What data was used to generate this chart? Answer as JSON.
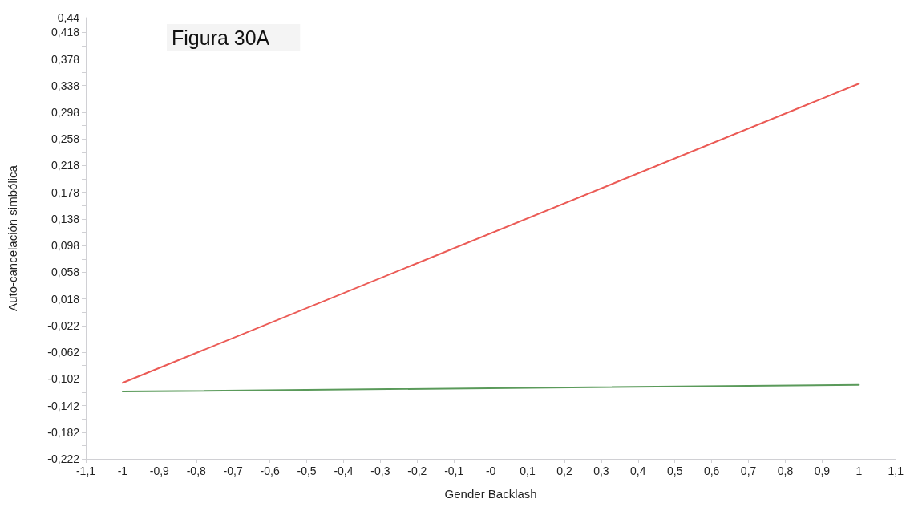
{
  "chart_data": {
    "type": "line",
    "title": "Figura 30A",
    "xlabel": "Gender Backlash",
    "ylabel": "Auto-cancelación simbólica",
    "x": [
      -1,
      1
    ],
    "series": [
      {
        "color": "#eb5a55",
        "values": [
          -0.108,
          0.341
        ]
      },
      {
        "color": "#5a9a5a",
        "values": [
          -0.121,
          -0.111
        ]
      }
    ],
    "xlim": [
      -1.1,
      1.1
    ],
    "xticks": [
      {
        "value": -1.1,
        "label": "-1,1"
      },
      -1,
      {
        "value": -0.9,
        "label": "-0,9"
      },
      {
        "value": -0.8,
        "label": "-0,8"
      },
      {
        "value": -0.7,
        "label": "-0,7"
      },
      {
        "value": -0.6,
        "label": "-0,6"
      },
      {
        "value": -0.5,
        "label": "-0,5"
      },
      {
        "value": -0.4,
        "label": "-0,4"
      },
      {
        "value": -0.3,
        "label": "-0,3"
      },
      {
        "value": -0.2,
        "label": "-0,2"
      },
      {
        "value": -0.1,
        "label": "-0,1"
      },
      {
        "value": 0,
        "label": "-0"
      },
      {
        "value": 0.1,
        "label": "0,1"
      },
      {
        "value": 0.2,
        "label": "0,2"
      },
      {
        "value": 0.3,
        "label": "0,3"
      },
      {
        "value": 0.4,
        "label": "0,4"
      },
      {
        "value": 0.5,
        "label": "0,5"
      },
      {
        "value": 0.6,
        "label": "0,6"
      },
      {
        "value": 0.7,
        "label": "0,7"
      },
      {
        "value": 0.8,
        "label": "0,8"
      },
      {
        "value": 0.9,
        "label": "0,9"
      },
      1,
      {
        "value": 1.1,
        "label": "1,1"
      }
    ],
    "ylim": [
      -0.222,
      0.44
    ],
    "yticks": [
      {
        "value": -0.222,
        "label": "-0,222"
      },
      {
        "value": -0.202,
        "label": null
      },
      {
        "value": -0.182,
        "label": "-0,182"
      },
      {
        "value": -0.162,
        "label": null
      },
      {
        "value": -0.142,
        "label": "-0,142"
      },
      {
        "value": -0.122,
        "label": null
      },
      {
        "value": -0.102,
        "label": "-0,102"
      },
      {
        "value": -0.082,
        "label": null
      },
      {
        "value": -0.062,
        "label": "-0,062"
      },
      {
        "value": -0.042,
        "label": null
      },
      {
        "value": -0.022,
        "label": "-0,022"
      },
      {
        "value": -0.002,
        "label": null
      },
      {
        "value": 0.018,
        "label": "0,018"
      },
      {
        "value": 0.038,
        "label": null
      },
      {
        "value": 0.058,
        "label": "0,058"
      },
      {
        "value": 0.078,
        "label": null
      },
      {
        "value": 0.098,
        "label": "0,098"
      },
      {
        "value": 0.118,
        "label": null
      },
      {
        "value": 0.138,
        "label": "0,138"
      },
      {
        "value": 0.158,
        "label": null
      },
      {
        "value": 0.178,
        "label": "0,178"
      },
      {
        "value": 0.198,
        "label": null
      },
      {
        "value": 0.218,
        "label": "0,218"
      },
      {
        "value": 0.238,
        "label": null
      },
      {
        "value": 0.258,
        "label": "0,258"
      },
      {
        "value": 0.278,
        "label": null
      },
      {
        "value": 0.298,
        "label": "0,298"
      },
      {
        "value": 0.318,
        "label": null
      },
      {
        "value": 0.338,
        "label": "0,338"
      },
      {
        "value": 0.358,
        "label": null
      },
      {
        "value": 0.378,
        "label": "0,378"
      },
      {
        "value": 0.398,
        "label": null
      },
      {
        "value": 0.418,
        "label": "0,418"
      },
      {
        "value": 0.44,
        "label": "0,44"
      }
    ],
    "grid": false,
    "marker": "none",
    "line_style": "solid"
  }
}
